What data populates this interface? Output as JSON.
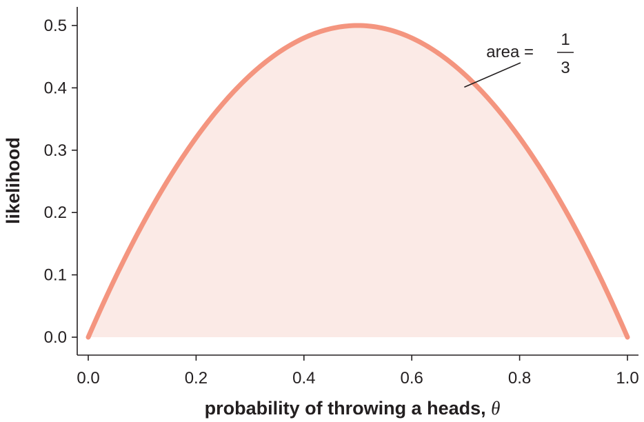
{
  "chart_data": {
    "type": "area",
    "title": "",
    "xlabel": "probability of throwing a heads,",
    "xlabel_symbol": "θ",
    "ylabel": "likelihood",
    "xlim": [
      0.0,
      1.0
    ],
    "ylim": [
      0.0,
      0.5
    ],
    "x_ticks": [
      "0.0",
      "0.2",
      "0.4",
      "0.6",
      "0.8",
      "1.0"
    ],
    "y_ticks": [
      "0.0",
      "0.1",
      "0.2",
      "0.3",
      "0.4",
      "0.5"
    ],
    "grid": false,
    "series": [
      {
        "function": "2*theta*(1-theta)",
        "x": [
          0.0,
          0.1,
          0.2,
          0.3,
          0.4,
          0.5,
          0.6,
          0.7,
          0.8,
          0.9,
          1.0
        ],
        "y": [
          0.0,
          0.18,
          0.32,
          0.42,
          0.48,
          0.5,
          0.48,
          0.42,
          0.32,
          0.18,
          0.0
        ],
        "line_color": "#f4957f",
        "fill_color": "#fbeae6"
      }
    ],
    "annotation": {
      "text": "area =",
      "numerator": "1",
      "denominator": "3",
      "points_to": {
        "x": 0.7,
        "y": 0.4
      }
    }
  }
}
